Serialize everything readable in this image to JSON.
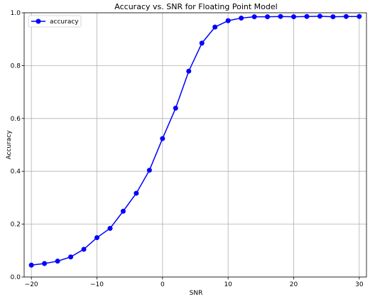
{
  "chart_data": {
    "type": "line",
    "title": "Accuracy vs. SNR for Floating Point Model",
    "xlabel": "SNR",
    "ylabel": "Accuracy",
    "xlim": [
      -21.1,
      31.1
    ],
    "ylim": [
      0.0,
      1.0
    ],
    "xticks": [
      -20,
      -10,
      0,
      10,
      20,
      30
    ],
    "xtick_labels": [
      "−20",
      "−10",
      "0",
      "10",
      "20",
      "30"
    ],
    "yticks": [
      0.0,
      0.2,
      0.4,
      0.6,
      0.8,
      1.0
    ],
    "ytick_labels": [
      "0.0",
      "0.2",
      "0.4",
      "0.6",
      "0.8",
      "1.0"
    ],
    "grid": true,
    "legend_position": "top-left",
    "series": [
      {
        "name": "accuracy",
        "color": "#0000ff",
        "marker": "circle",
        "x": [
          -20,
          -18,
          -16,
          -14,
          -12,
          -10,
          -8,
          -6,
          -4,
          -2,
          0,
          2,
          4,
          6,
          8,
          10,
          12,
          14,
          16,
          18,
          20,
          22,
          24,
          26,
          28,
          30
        ],
        "y": [
          0.045,
          0.051,
          0.06,
          0.076,
          0.105,
          0.149,
          0.184,
          0.249,
          0.317,
          0.404,
          0.524,
          0.639,
          0.779,
          0.885,
          0.946,
          0.97,
          0.98,
          0.985,
          0.985,
          0.986,
          0.985,
          0.986,
          0.987,
          0.985,
          0.986,
          0.986
        ]
      }
    ]
  }
}
